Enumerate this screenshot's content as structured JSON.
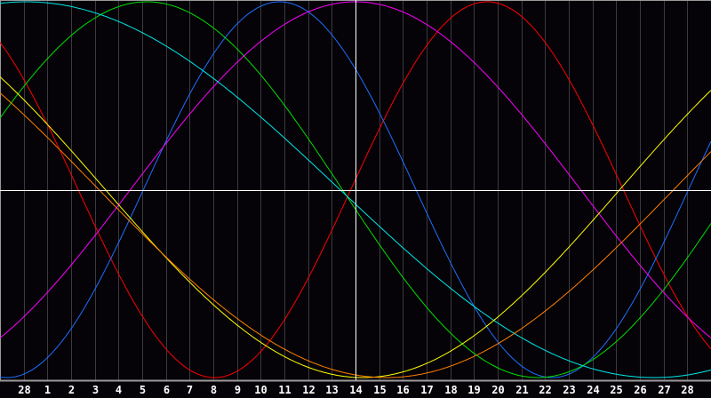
{
  "chart_data": {
    "type": "line",
    "title": "",
    "xlabel": "",
    "ylabel": "",
    "x_tick_labels": [
      "28",
      "1",
      "2",
      "3",
      "4",
      "5",
      "6",
      "7",
      "8",
      "9",
      "10",
      "11",
      "12",
      "13",
      "14",
      "15",
      "16",
      "17",
      "18",
      "19",
      "20",
      "21",
      "22",
      "23",
      "24",
      "25",
      "26",
      "27",
      "28"
    ],
    "x_tick_days": [
      0,
      1,
      2,
      3,
      4,
      5,
      6,
      7,
      8,
      9,
      10,
      11,
      12,
      13,
      14,
      15,
      16,
      17,
      18,
      19,
      20,
      21,
      22,
      23,
      24,
      25,
      26,
      27,
      28
    ],
    "xlim": [
      -1,
      29
    ],
    "ylim": [
      -1,
      1
    ],
    "grid": true,
    "highlight_day": 14,
    "series": [
      {
        "color": "#ff0000",
        "period_days": 23,
        "peak_day": 19.55
      },
      {
        "color": "#1e6fff",
        "period_days": 23,
        "peak_day": 10.8
      },
      {
        "color": "#00e000",
        "period_days": 33,
        "peak_day": 5.2
      },
      {
        "color": "#ff00ff",
        "period_days": 38,
        "peak_day": 14.0
      },
      {
        "color": "#00e8e8",
        "period_days": 53,
        "peak_day": 0.1
      },
      {
        "color": "#ffff00",
        "period_days": 43.4,
        "trough_day": 14.3
      },
      {
        "color": "#ff8000",
        "period_days": 48.5,
        "trough_day": 15.3
      }
    ]
  },
  "colors": {
    "background": "#050308",
    "grid": "#3a3a3e",
    "axis": "#9a9a9a",
    "crosshair": "#ffffff"
  }
}
